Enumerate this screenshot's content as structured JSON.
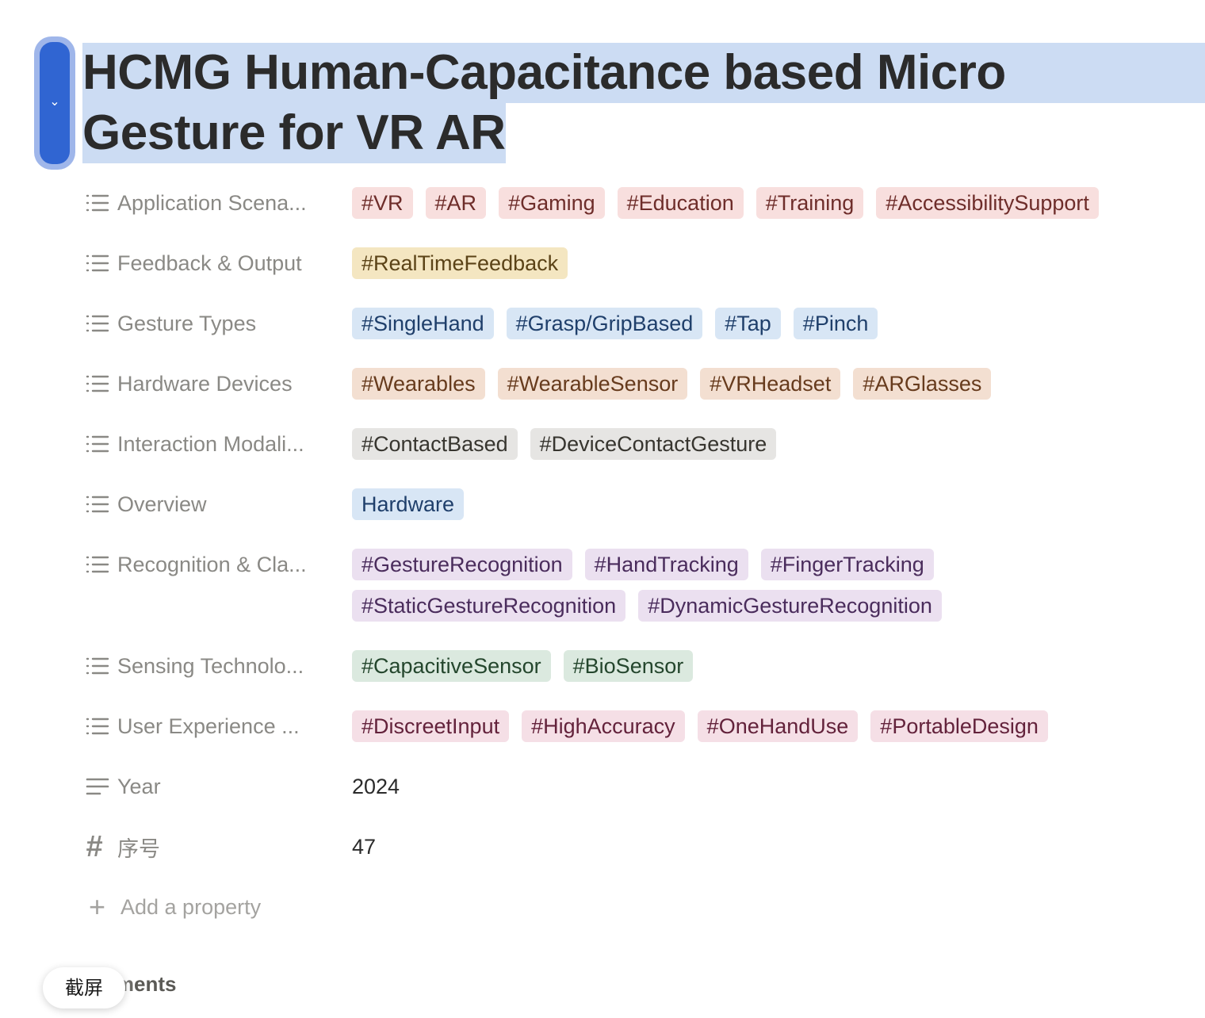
{
  "title": {
    "line1": "HCMG Human-Capacitance based Micro",
    "line2": "Gesture for VR AR"
  },
  "drag_handle": {
    "icon": "chevron-down-icon",
    "glyph": "⌄"
  },
  "properties": [
    {
      "label": "Application Scena...",
      "icon": "list-icon",
      "tags": [
        {
          "text": "#VR",
          "color": "red"
        },
        {
          "text": "#AR",
          "color": "red"
        },
        {
          "text": "#Gaming",
          "color": "red"
        },
        {
          "text": "#Education",
          "color": "red"
        },
        {
          "text": "#Training",
          "color": "red"
        },
        {
          "text": "#AccessibilitySupport",
          "color": "red"
        }
      ]
    },
    {
      "label": "Feedback & Output",
      "icon": "list-icon",
      "tags": [
        {
          "text": "#RealTimeFeedback",
          "color": "yellow"
        }
      ]
    },
    {
      "label": "Gesture Types",
      "icon": "list-icon",
      "tags": [
        {
          "text": "#SingleHand",
          "color": "blue"
        },
        {
          "text": "#Grasp/GripBased",
          "color": "blue"
        },
        {
          "text": "#Tap",
          "color": "blue"
        },
        {
          "text": "#Pinch",
          "color": "blue"
        }
      ]
    },
    {
      "label": "Hardware Devices",
      "icon": "list-icon",
      "tags": [
        {
          "text": "#Wearables",
          "color": "orange"
        },
        {
          "text": "#WearableSensor",
          "color": "orange"
        },
        {
          "text": "#VRHeadset",
          "color": "orange"
        },
        {
          "text": "#ARGlasses",
          "color": "orange"
        }
      ]
    },
    {
      "label": "Interaction Modali...",
      "icon": "list-icon",
      "tags": [
        {
          "text": "#ContactBased",
          "color": "gray"
        },
        {
          "text": "#DeviceContactGesture",
          "color": "gray"
        }
      ]
    },
    {
      "label": "Overview",
      "icon": "list-icon",
      "tags": [
        {
          "text": "Hardware",
          "color": "blue"
        }
      ]
    },
    {
      "label": "Recognition & Cla...",
      "icon": "list-icon",
      "tags": [
        {
          "text": "#GestureRecognition",
          "color": "purple"
        },
        {
          "text": "#HandTracking",
          "color": "purple"
        },
        {
          "text": "#FingerTracking",
          "color": "purple"
        },
        {
          "text": "#StaticGestureRecognition",
          "color": "purple"
        },
        {
          "text": "#DynamicGestureRecognition",
          "color": "purple"
        }
      ]
    },
    {
      "label": "Sensing Technolo...",
      "icon": "list-icon",
      "tags": [
        {
          "text": "#CapacitiveSensor",
          "color": "green"
        },
        {
          "text": "#BioSensor",
          "color": "green"
        }
      ]
    },
    {
      "label": "User Experience ...",
      "icon": "list-icon",
      "tags": [
        {
          "text": "#DiscreetInput",
          "color": "pink"
        },
        {
          "text": "#HighAccuracy",
          "color": "pink"
        },
        {
          "text": "#OneHandUse",
          "color": "pink"
        },
        {
          "text": "#PortableDesign",
          "color": "pink"
        }
      ]
    },
    {
      "label": "Year",
      "icon": "text-lines-icon",
      "value": "2024"
    },
    {
      "label": "序号",
      "icon": "hash-icon",
      "value": "47"
    }
  ],
  "add_property": {
    "label": "Add a property",
    "icon": "plus-icon"
  },
  "comments": {
    "label_visible": "nments"
  },
  "screenshot_tooltip": {
    "label": "截屏"
  },
  "colors": {
    "selection": "#ccdcf3",
    "handle": "#3065d2",
    "red": "#f8dfde",
    "yellow": "#f4e6c1",
    "blue": "#d8e6f5",
    "orange": "#f3dfd1",
    "gray": "#e6e5e3",
    "purple": "#ebe0f0",
    "green": "#dbe9df",
    "pink": "#f5dfe6"
  }
}
